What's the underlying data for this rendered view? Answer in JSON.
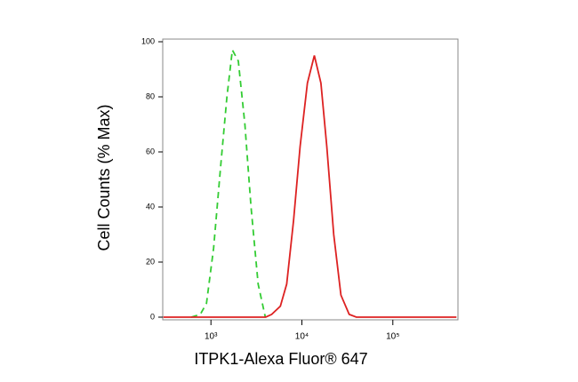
{
  "chart_data": {
    "type": "line",
    "xlabel": "ITPK1-Alexa Fluor® 647",
    "ylabel": "Cell Counts (% Max)",
    "xscale": "log",
    "xlim": [
      295,
      520000
    ],
    "ylim": [
      0,
      100
    ],
    "xticks": [
      {
        "value": 1000,
        "label": "10³"
      },
      {
        "value": 10000,
        "label": "10⁴"
      },
      {
        "value": 100000,
        "label": "10⁵"
      }
    ],
    "yticks": [
      0,
      20,
      40,
      60,
      80,
      100
    ],
    "series": [
      {
        "color": "#33cc33",
        "dash": true,
        "x": [
          608,
          763,
          893,
          1070,
          1280,
          1500,
          1720,
          2000,
          2360,
          2760,
          3300,
          3960
        ],
        "values": [
          0,
          1,
          5,
          25,
          55,
          80,
          97,
          93,
          70,
          40,
          12,
          0
        ]
      },
      {
        "color": "#dd2222",
        "dash": false,
        "x": [
          300,
          4000,
          4650,
          5800,
          6800,
          8100,
          9560,
          11500,
          13700,
          16200,
          18800,
          22400,
          26900,
          33100,
          39800,
          500000
        ],
        "values": [
          0,
          0,
          1,
          4,
          12,
          35,
          62,
          85,
          95,
          85,
          62,
          30,
          8,
          1,
          0,
          0
        ]
      }
    ]
  }
}
